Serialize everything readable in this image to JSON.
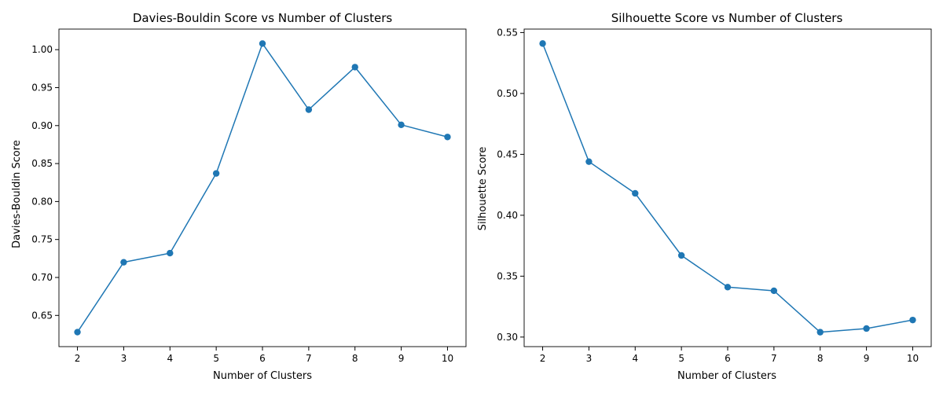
{
  "chart_data": [
    {
      "type": "line",
      "title": "Davies-Bouldin Score vs Number of Clusters",
      "xlabel": "Number of Clusters",
      "ylabel": "Davies-Bouldin Score",
      "x": [
        2,
        3,
        4,
        5,
        6,
        7,
        8,
        9,
        10
      ],
      "series": [
        {
          "name": "Davies-Bouldin Score",
          "values": [
            0.628,
            0.72,
            0.732,
            0.837,
            1.008,
            0.921,
            0.977,
            0.901,
            0.885
          ]
        }
      ],
      "xlim": [
        1.6,
        10.4
      ],
      "ylim": [
        0.6089,
        1.0271
      ],
      "xticks": [
        2,
        3,
        4,
        5,
        6,
        7,
        8,
        9,
        10
      ],
      "yticks": [
        0.65,
        0.7,
        0.75,
        0.8,
        0.85,
        0.9,
        0.95,
        1.0
      ],
      "ytick_labels": [
        "0.65",
        "0.70",
        "0.75",
        "0.80",
        "0.85",
        "0.90",
        "0.95",
        "1.00"
      ],
      "grid": false,
      "color": "#1f77b4"
    },
    {
      "type": "line",
      "title": "Silhouette Score vs Number of Clusters",
      "xlabel": "Number of Clusters",
      "ylabel": "Silhouette Score",
      "x": [
        2,
        3,
        4,
        5,
        6,
        7,
        8,
        9,
        10
      ],
      "series": [
        {
          "name": "Silhouette Score",
          "values": [
            0.541,
            0.444,
            0.418,
            0.367,
            0.341,
            0.338,
            0.304,
            0.307,
            0.314
          ]
        }
      ],
      "xlim": [
        1.6,
        10.4
      ],
      "ylim": [
        0.29215,
        0.55285
      ],
      "xticks": [
        2,
        3,
        4,
        5,
        6,
        7,
        8,
        9,
        10
      ],
      "yticks": [
        0.3,
        0.35,
        0.4,
        0.45,
        0.5,
        0.55
      ],
      "ytick_labels": [
        "0.30",
        "0.35",
        "0.40",
        "0.45",
        "0.50",
        "0.55"
      ],
      "grid": false,
      "color": "#1f77b4"
    }
  ]
}
